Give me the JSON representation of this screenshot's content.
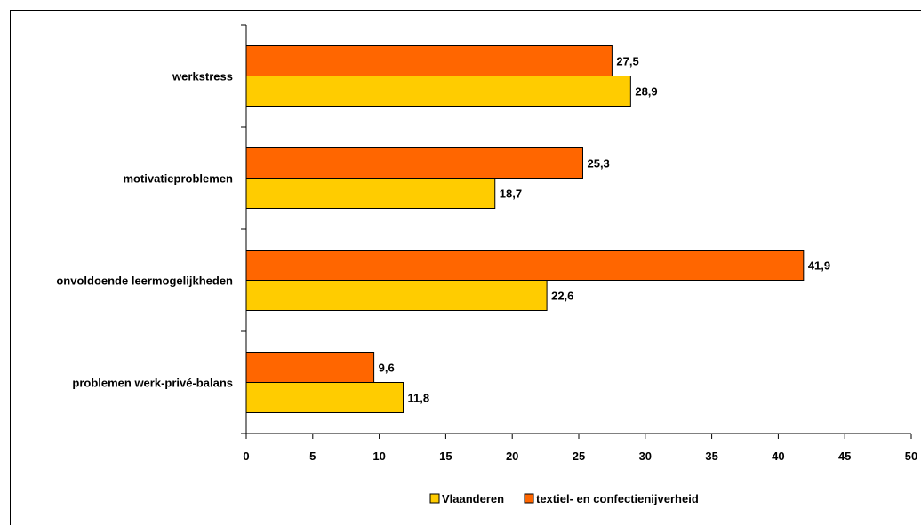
{
  "chart_data": {
    "type": "bar",
    "orientation": "horizontal",
    "categories": [
      "werkstress",
      "motivatieproblemen",
      "onvoldoende leermogelijkheden",
      "problemen werk-privé-balans"
    ],
    "series": [
      {
        "name": "textiel- en confectienijverheid",
        "values": [
          27.5,
          25.3,
          41.9,
          9.6
        ],
        "labels": [
          "27,5",
          "25,3",
          "41,9",
          "9,6"
        ],
        "color": "#FF6600"
      },
      {
        "name": "Vlaanderen",
        "values": [
          28.9,
          18.7,
          22.6,
          11.8
        ],
        "labels": [
          "28,9",
          "18,7",
          "22,6",
          "11,8"
        ],
        "color": "#FFCC00"
      }
    ],
    "xlim": [
      0,
      50
    ],
    "xticks": [
      "0",
      "5",
      "10",
      "15",
      "20",
      "25",
      "30",
      "35",
      "40",
      "45",
      "50"
    ],
    "grid": false,
    "legend": {
      "placement": "bottom",
      "entries": [
        "Vlaanderen",
        "textiel- en confectienijverheid"
      ]
    },
    "title": "",
    "xlabel": "",
    "ylabel": ""
  }
}
